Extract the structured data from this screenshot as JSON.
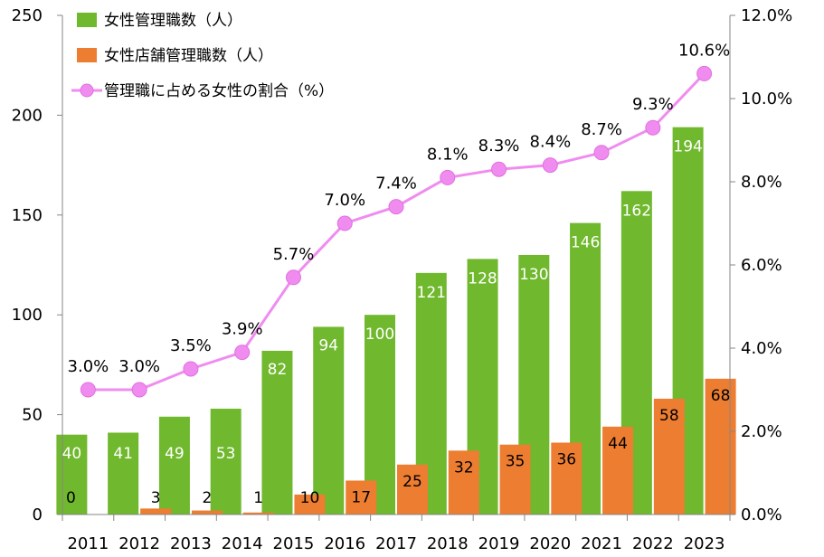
{
  "chart_data": {
    "type": "bar",
    "categories": [
      "2011",
      "2012",
      "2013",
      "2014",
      "2015",
      "2016",
      "2017",
      "2018",
      "2019",
      "2020",
      "2021",
      "2022",
      "2023"
    ],
    "series": [
      {
        "name": "女性管理職数（人）",
        "kind": "bar",
        "axis": "left",
        "color": "#70b82e",
        "values": [
          40,
          41,
          49,
          53,
          82,
          94,
          100,
          121,
          128,
          130,
          146,
          162,
          194
        ],
        "labels": [
          "40",
          "41",
          "49",
          "53",
          "82",
          "94",
          "100",
          "121",
          "128",
          "130",
          "146",
          "162",
          "194"
        ]
      },
      {
        "name": "女性店舗管理職数（人）",
        "kind": "bar",
        "axis": "left",
        "color": "#ed7d31",
        "values": [
          0,
          3,
          2,
          1,
          10,
          17,
          25,
          32,
          35,
          36,
          44,
          58,
          68
        ],
        "labels": [
          "0",
          "3",
          "2",
          "1",
          "10",
          "17",
          "25",
          "32",
          "35",
          "36",
          "44",
          "58",
          "68"
        ]
      },
      {
        "name": "管理職に占める女性の割合（%）",
        "kind": "line",
        "axis": "right",
        "color": "#f08cf0",
        "values": [
          3.0,
          3.0,
          3.5,
          3.9,
          5.7,
          7.0,
          7.4,
          8.1,
          8.3,
          8.4,
          8.7,
          9.3,
          10.6
        ],
        "labels": [
          "3.0%",
          "3.0%",
          "3.5%",
          "3.9%",
          "5.7%",
          "7.0%",
          "7.4%",
          "8.1%",
          "8.3%",
          "8.4%",
          "8.7%",
          "9.3%",
          "10.6%"
        ]
      }
    ],
    "y_left": {
      "min": 0,
      "max": 250,
      "step": 50,
      "ticks": [
        "0",
        "50",
        "100",
        "150",
        "200",
        "250"
      ]
    },
    "y_right": {
      "min": 0,
      "max": 12,
      "step": 2,
      "ticks": [
        "0.0%",
        "2.0%",
        "4.0%",
        "6.0%",
        "8.0%",
        "10.0%",
        "12.0%"
      ]
    },
    "grid": false,
    "legend_position": "top-left"
  }
}
